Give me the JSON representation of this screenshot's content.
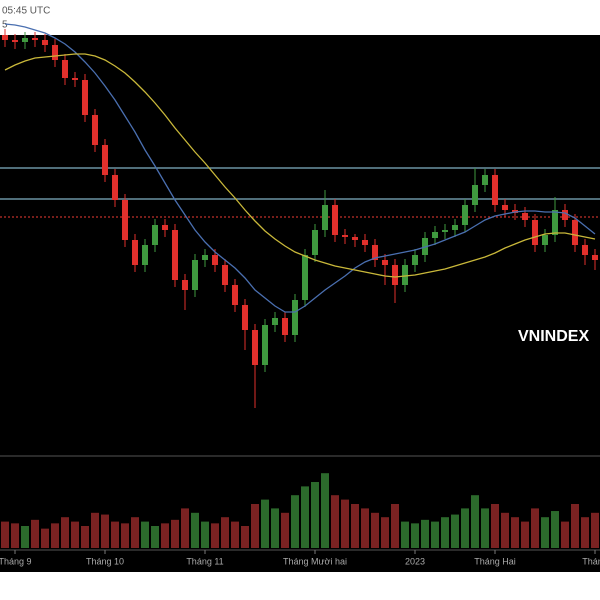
{
  "chart_data": {
    "type": "candlestick",
    "annotations": [
      "05:45 UTC",
      "5"
    ],
    "label": "VNINDEX",
    "categories": [
      null,
      "Tháng 9",
      null,
      null,
      null,
      null,
      null,
      null,
      null,
      null,
      "Tháng 10",
      null,
      null,
      null,
      null,
      null,
      null,
      null,
      null,
      null,
      "Tháng 11",
      null,
      null,
      null,
      null,
      null,
      null,
      null,
      null,
      null,
      null,
      "Tháng Mười hai",
      null,
      null,
      null,
      null,
      null,
      null,
      null,
      null,
      null,
      "2023",
      null,
      null,
      null,
      null,
      null,
      null,
      null,
      "Tháng Hai",
      null,
      null,
      null,
      null,
      null,
      null,
      null,
      null,
      null,
      "Tháng"
    ],
    "open": [
      1290,
      1285,
      1283,
      1287,
      1285,
      1280,
      1265,
      1247,
      1245,
      1210,
      1180,
      1150,
      1125,
      1085,
      1060,
      1080,
      1100,
      1095,
      1045,
      1035,
      1065,
      1070,
      1060,
      1040,
      1020,
      995,
      960,
      1000,
      1007,
      990,
      1025,
      1070,
      1095,
      1120,
      1090,
      1088,
      1085,
      1080,
      1065,
      1060,
      1040,
      1060,
      1070,
      1087,
      1093,
      1095,
      1100,
      1120,
      1140,
      1150,
      1120,
      1115,
      1112,
      1105,
      1080,
      1090,
      1115,
      1105,
      1080,
      1070
    ],
    "high": [
      1296,
      1291,
      1293,
      1293,
      1291,
      1286,
      1271,
      1253,
      1251,
      1216,
      1186,
      1156,
      1131,
      1091,
      1086,
      1106,
      1106,
      1101,
      1051,
      1071,
      1076,
      1076,
      1066,
      1046,
      1026,
      1001,
      1006,
      1013,
      1013,
      1031,
      1076,
      1101,
      1135,
      1126,
      1096,
      1091,
      1091,
      1086,
      1071,
      1066,
      1066,
      1076,
      1093,
      1099,
      1101,
      1106,
      1126,
      1157,
      1156,
      1156,
      1126,
      1121,
      1118,
      1111,
      1096,
      1128,
      1121,
      1111,
      1086,
      1076
    ],
    "low": [
      1278,
      1276,
      1276,
      1278,
      1273,
      1258,
      1240,
      1238,
      1203,
      1173,
      1143,
      1118,
      1078,
      1053,
      1053,
      1073,
      1088,
      1038,
      1015,
      1028,
      1058,
      1053,
      1033,
      1013,
      975,
      917,
      953,
      993,
      983,
      983,
      1018,
      1063,
      1088,
      1083,
      1081,
      1078,
      1073,
      1058,
      1040,
      1022,
      1033,
      1053,
      1063,
      1080,
      1086,
      1088,
      1093,
      1113,
      1133,
      1113,
      1108,
      1105,
      1098,
      1073,
      1073,
      1083,
      1098,
      1073,
      1060,
      1055
    ],
    "close": [
      1285,
      1283,
      1287,
      1285,
      1280,
      1265,
      1247,
      1245,
      1210,
      1180,
      1150,
      1125,
      1085,
      1060,
      1080,
      1100,
      1095,
      1045,
      1035,
      1065,
      1070,
      1060,
      1040,
      1020,
      995,
      960,
      1000,
      1007,
      990,
      1025,
      1070,
      1095,
      1120,
      1090,
      1088,
      1085,
      1080,
      1065,
      1060,
      1040,
      1060,
      1070,
      1087,
      1093,
      1095,
      1100,
      1120,
      1140,
      1150,
      1120,
      1115,
      1112,
      1105,
      1080,
      1090,
      1115,
      1105,
      1080,
      1070,
      1065
    ],
    "volume": [
      30,
      28,
      25,
      32,
      22,
      28,
      35,
      30,
      25,
      40,
      38,
      30,
      28,
      35,
      30,
      25,
      28,
      32,
      45,
      40,
      30,
      28,
      35,
      30,
      25,
      50,
      55,
      45,
      40,
      60,
      70,
      75,
      85,
      60,
      55,
      50,
      45,
      40,
      35,
      50,
      30,
      28,
      32,
      30,
      35,
      38,
      45,
      60,
      45,
      50,
      40,
      35,
      30,
      45,
      35,
      42,
      30,
      50,
      35,
      40
    ],
    "overlays": [
      {
        "color": "#4a6fb0",
        "values": [
          1301,
          1300,
          1298,
          1295,
          1292,
          1287,
          1281,
          1273,
          1263,
          1252,
          1239,
          1225,
          1209,
          1193,
          1175,
          1159,
          1142,
          1125,
          1110,
          1095,
          1083,
          1073,
          1065,
          1057,
          1047,
          1035,
          1027,
          1019,
          1013,
          1013,
          1019,
          1027,
          1035,
          1042,
          1049,
          1057,
          1063,
          1067,
          1069,
          1071,
          1073,
          1075,
          1078,
          1081,
          1085,
          1089,
          1093,
          1099,
          1105,
          1109,
          1111,
          1113,
          1114,
          1114,
          1113,
          1113,
          1112,
          1107,
          1099,
          1091
        ]
      },
      {
        "color": "#c9b83a",
        "values": [
          1255,
          1260,
          1264,
          1267,
          1268,
          1269,
          1270,
          1271,
          1271,
          1269,
          1265,
          1259,
          1252,
          1243,
          1233,
          1222,
          1210,
          1197,
          1185,
          1173,
          1162,
          1150,
          1138,
          1127,
          1115,
          1104,
          1094,
          1086,
          1079,
          1073,
          1069,
          1065,
          1062,
          1059,
          1057,
          1055,
          1053,
          1051,
          1049,
          1048,
          1049,
          1050,
          1052,
          1054,
          1056,
          1059,
          1062,
          1065,
          1068,
          1072,
          1077,
          1081,
          1085,
          1088,
          1091,
          1092,
          1092,
          1090,
          1088,
          1086
        ]
      }
    ],
    "hlines": [
      {
        "value": 1157,
        "color": "#7fb0c4",
        "dashed": false
      },
      {
        "value": 1126,
        "color": "#7fb0c4",
        "dashed": false
      },
      {
        "value": 1108,
        "color": "#c0302a",
        "dashed": true
      }
    ],
    "ylim": [
      870,
      1290
    ],
    "vlim": [
      0,
      100
    ],
    "up_color": "#3f9a3f",
    "down_color": "#e0302c",
    "volume_up_color": "#2c6a2c",
    "volume_down_color": "#7a2222"
  }
}
